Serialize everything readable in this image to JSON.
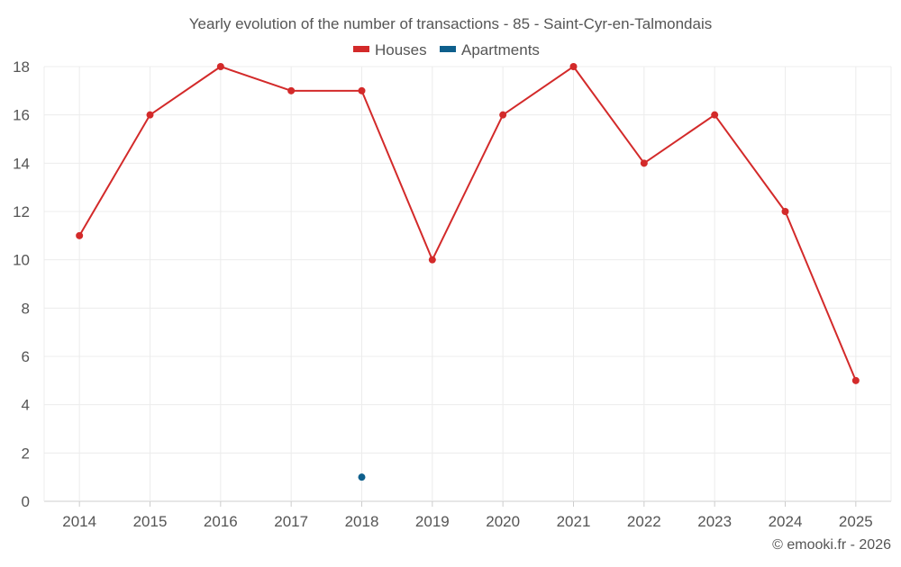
{
  "colors": {
    "houses": "#d32a2a",
    "apartments": "#0e5f8c",
    "grid": "#ececec",
    "text": "#555555"
  },
  "chart_data": {
    "type": "line",
    "title": "Yearly evolution of the number of transactions - 85 - Saint-Cyr-en-Talmondais",
    "credit": "© emooki.fr - 2026",
    "x": [
      "2014",
      "2015",
      "2016",
      "2017",
      "2018",
      "2019",
      "2020",
      "2021",
      "2022",
      "2023",
      "2024",
      "2025"
    ],
    "y_ticks": [
      "0",
      "2",
      "4",
      "6",
      "8",
      "10",
      "12",
      "14",
      "16",
      "18"
    ],
    "ylim": [
      0,
      18
    ],
    "grid": true,
    "legend_position": "top-center",
    "series": [
      {
        "name": "Houses",
        "color": "#d32a2a",
        "values": [
          11,
          16,
          18,
          17,
          17,
          10,
          16,
          18,
          14,
          16,
          12,
          5
        ]
      },
      {
        "name": "Apartments",
        "color": "#0e5f8c",
        "values": [
          null,
          null,
          null,
          null,
          1,
          null,
          null,
          null,
          null,
          null,
          null,
          null
        ]
      }
    ]
  }
}
